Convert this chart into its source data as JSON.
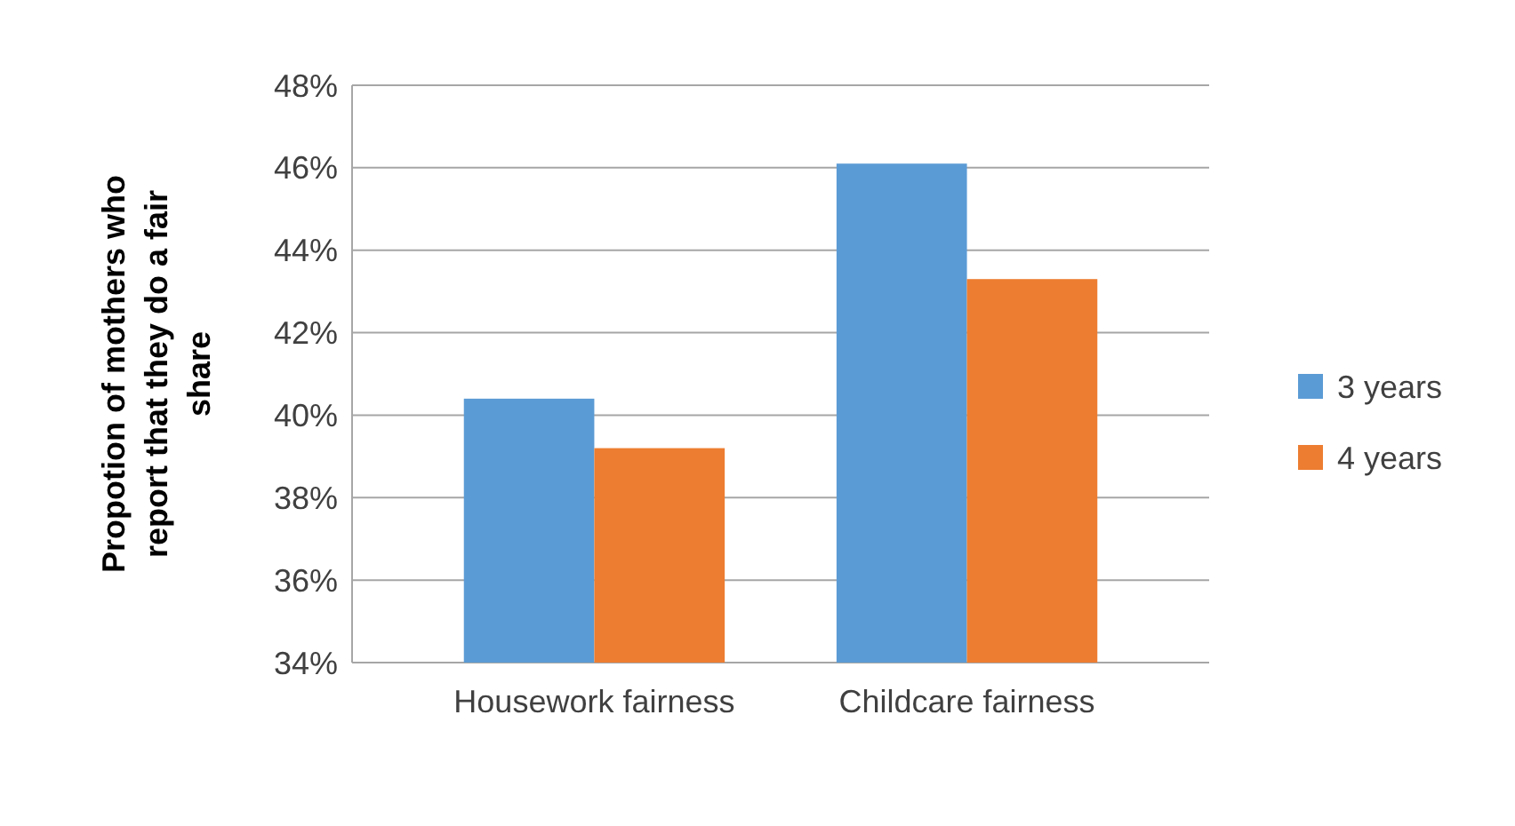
{
  "chart_data": {
    "type": "bar",
    "ylabel": "Propotion of mothers who report that they do a fair share",
    "categories": [
      "Housework fairness",
      "Childcare fairness"
    ],
    "series": [
      {
        "name": "3 years",
        "color": "#5b9bd5",
        "values": [
          40.4,
          46.1
        ]
      },
      {
        "name": "4 years",
        "color": "#ed7d31",
        "values": [
          39.2,
          43.3
        ]
      }
    ],
    "ylim": [
      34,
      48
    ],
    "yticks": [
      {
        "value": 34,
        "label": "34%"
      },
      {
        "value": 36,
        "label": "36%"
      },
      {
        "value": 38,
        "label": "38%"
      },
      {
        "value": 40,
        "label": "40%"
      },
      {
        "value": 42,
        "label": "42%"
      },
      {
        "value": 44,
        "label": "44%"
      },
      {
        "value": 46,
        "label": "46%"
      },
      {
        "value": 48,
        "label": "48%"
      }
    ],
    "grid": true,
    "legend": "right"
  }
}
